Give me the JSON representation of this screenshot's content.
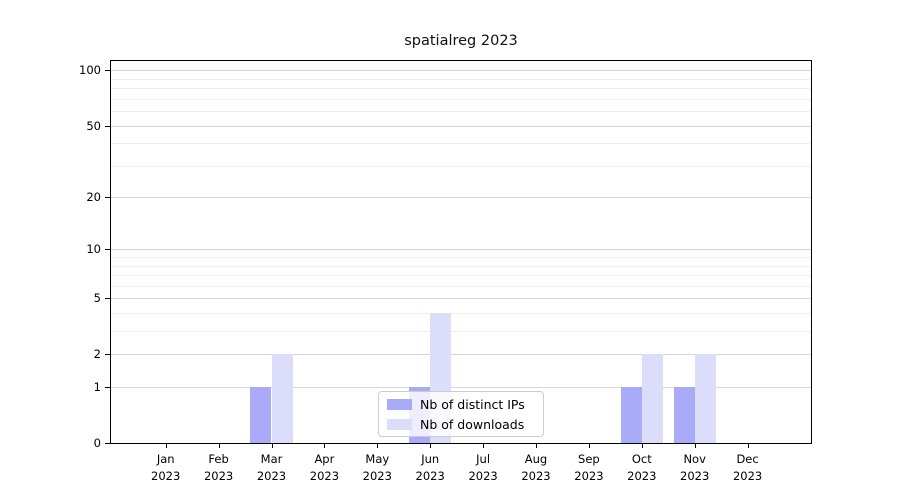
{
  "title": "spatialreg 2023",
  "chart_data": {
    "type": "bar",
    "title": "spatialreg 2023",
    "x_month_labels": [
      "Jan",
      "Feb",
      "Mar",
      "Apr",
      "May",
      "Jun",
      "Jul",
      "Aug",
      "Sep",
      "Oct",
      "Nov",
      "Dec"
    ],
    "x_year_label": "2023",
    "categories": [
      "Jan 2023",
      "Feb 2023",
      "Mar 2023",
      "Apr 2023",
      "May 2023",
      "Jun 2023",
      "Jul 2023",
      "Aug 2023",
      "Sep 2023",
      "Oct 2023",
      "Nov 2023",
      "Dec 2023"
    ],
    "series": [
      {
        "name": "Nb of distinct IPs",
        "color": "#a9abf8",
        "values": [
          0,
          0,
          1,
          0,
          0,
          1,
          0,
          0,
          0,
          1,
          1,
          0
        ]
      },
      {
        "name": "Nb of downloads",
        "color": "#dbddfa",
        "values": [
          0,
          0,
          2,
          0,
          0,
          4,
          0,
          0,
          0,
          2,
          2,
          0
        ]
      }
    ],
    "xlabel": "",
    "ylabel": "",
    "y_scale": "log1p",
    "y_ticks": [
      0,
      1,
      2,
      5,
      10,
      20,
      50,
      100
    ],
    "y_minor_ticks": [
      3,
      4,
      6,
      7,
      8,
      9,
      30,
      40,
      60,
      70,
      80,
      90
    ],
    "ylim": [
      0,
      113
    ],
    "grid": "horizontal-on",
    "legend_position": "lower center"
  },
  "colors": {
    "bar_distinct_ips": "#a9abf8",
    "bar_downloads": "#dbddfa",
    "grid_major": "#d6d6d6",
    "grid_minor": "#efefef",
    "axis": "#000000",
    "legend_border": "#cccccc",
    "legend_bg": "rgba(255,255,255,0.8)"
  }
}
